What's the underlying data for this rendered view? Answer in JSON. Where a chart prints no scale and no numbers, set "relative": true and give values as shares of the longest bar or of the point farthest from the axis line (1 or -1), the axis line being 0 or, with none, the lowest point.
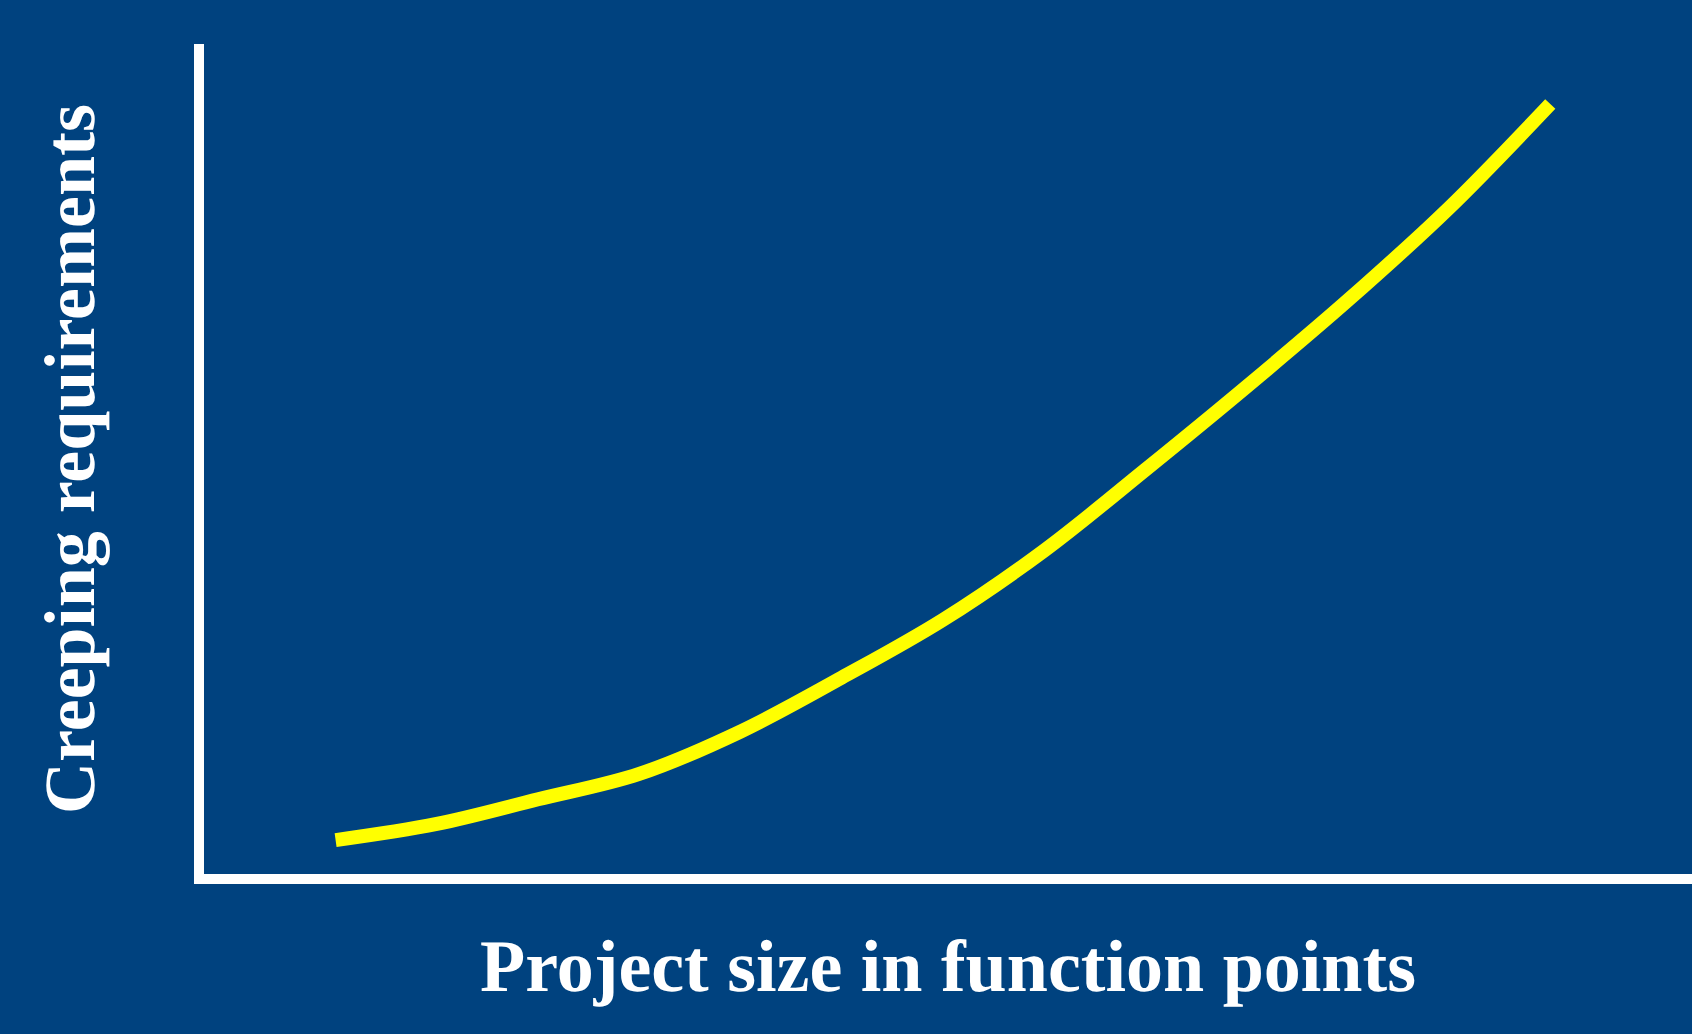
{
  "chart_data": {
    "type": "line",
    "relative": true,
    "xlabel": "Project size in function points",
    "ylabel": "Creeping requirements",
    "categories": [
      null,
      null,
      null,
      null,
      null,
      null,
      null,
      null,
      null,
      null,
      null,
      null,
      null
    ],
    "series": [
      {
        "color": "#ffff00",
        "values": [
          0.044,
          0.065,
          0.097,
          0.13,
          0.185,
          0.255,
          0.33,
          0.42,
          0.525,
          0.633,
          0.745,
          0.865,
          1
        ]
      }
    ],
    "grid": false,
    "marker": "none",
    "line_style": "solid",
    "tick_labels": false
  }
}
